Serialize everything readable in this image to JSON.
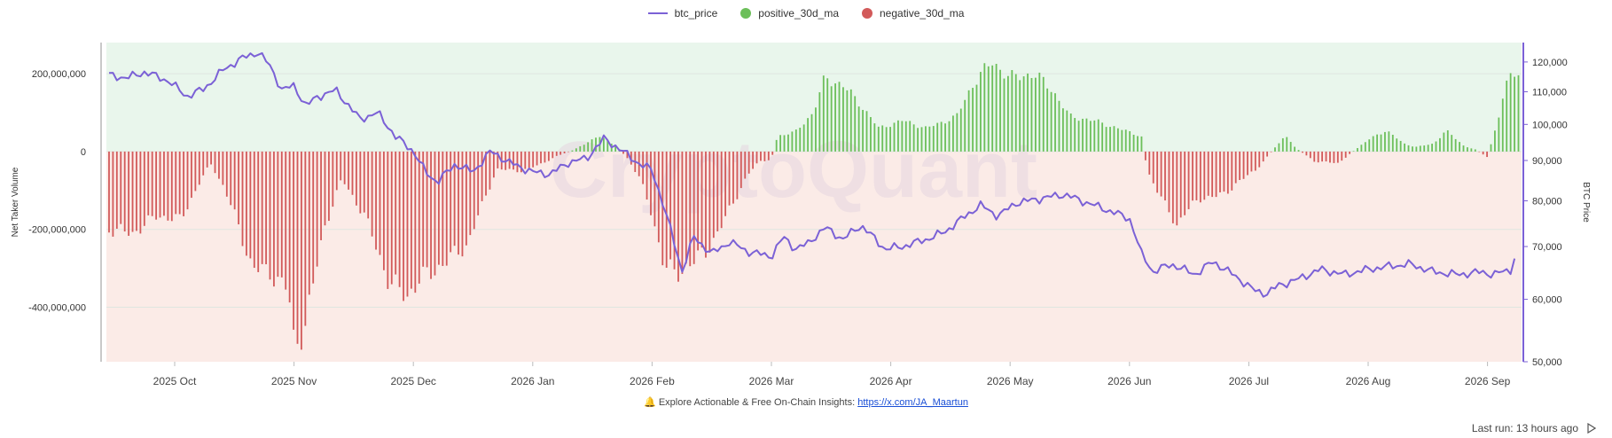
{
  "legend": {
    "items": [
      {
        "label": "btc_price",
        "color": "#7b61d6",
        "kind": "line"
      },
      {
        "label": "positive_30d_ma",
        "color": "#6cbf5a",
        "kind": "dot"
      },
      {
        "label": "negative_30d_ma",
        "color": "#d25a5a",
        "kind": "dot"
      }
    ]
  },
  "footer": {
    "note_icon": "bell-icon",
    "note_text": "Explore Actionable & Free On-Chain Insights:",
    "note_link": "https://x.com/JA_Maartun",
    "last_run": "Last run: 13 hours ago",
    "run_icon": "play-icon"
  },
  "watermark": "CryptoQuant",
  "chart_data": {
    "type": "bar",
    "x_tick_labels": [
      "2025 Oct",
      "2025 Nov",
      "2025 Dec",
      "2026 Jan",
      "2026 Feb",
      "2026 Mar",
      "2026 Apr",
      "2026 May",
      "2026 Jun",
      "2026 Jul",
      "2026 Aug",
      "2026 Sep"
    ],
    "x_range_months": [
      -0.55,
      11.35
    ],
    "y_left": {
      "label": "Net Taker Volume",
      "range": [
        -540000000,
        280000000
      ],
      "ticks": [
        200000000,
        0,
        -200000000,
        -400000000
      ],
      "tick_labels": [
        "200,000,000",
        "0",
        "-200,000,000",
        "-400,000,000"
      ]
    },
    "y_right": {
      "label": "BTC Price",
      "scale": "log",
      "range": [
        50000,
        127000
      ],
      "ticks": [
        120000,
        110000,
        100000,
        90000,
        80000,
        70000,
        60000,
        50000
      ],
      "tick_labels": [
        "120,000",
        "110,000",
        "100,000",
        "90,000",
        "80,000",
        "70,000",
        "60,000",
        "50,000"
      ]
    },
    "background_zones": [
      {
        "name": "positive",
        "color": "#e9f6ec"
      },
      {
        "name": "negative",
        "color": "#fbebe7"
      }
    ],
    "net_taker_volume_keypoints": [
      [
        -0.55,
        -200000000
      ],
      [
        -0.35,
        -210000000
      ],
      [
        -0.15,
        -165000000
      ],
      [
        0.05,
        -175000000
      ],
      [
        0.2,
        -85000000
      ],
      [
        0.3,
        -30000000
      ],
      [
        0.4,
        -85000000
      ],
      [
        0.5,
        -160000000
      ],
      [
        0.65,
        -300000000
      ],
      [
        0.8,
        -310000000
      ],
      [
        0.95,
        -355000000
      ],
      [
        1.0,
        -500000000
      ],
      [
        1.1,
        -440000000
      ],
      [
        1.25,
        -200000000
      ],
      [
        1.4,
        -70000000
      ],
      [
        1.6,
        -170000000
      ],
      [
        1.8,
        -340000000
      ],
      [
        1.95,
        -370000000
      ],
      [
        2.05,
        -330000000
      ],
      [
        2.2,
        -300000000
      ],
      [
        2.45,
        -240000000
      ],
      [
        2.6,
        -120000000
      ],
      [
        2.7,
        -45000000
      ],
      [
        2.9,
        -50000000
      ],
      [
        3.05,
        -35000000
      ],
      [
        3.2,
        -12000000
      ],
      [
        3.35,
        5000000
      ],
      [
        3.55,
        40000000
      ],
      [
        3.7,
        15000000
      ],
      [
        3.8,
        -20000000
      ],
      [
        3.9,
        -70000000
      ],
      [
        4.0,
        -165000000
      ],
      [
        4.1,
        -290000000
      ],
      [
        4.2,
        -320000000
      ],
      [
        4.3,
        -290000000
      ],
      [
        4.45,
        -260000000
      ],
      [
        4.6,
        -180000000
      ],
      [
        4.8,
        -60000000
      ],
      [
        4.9,
        -25000000
      ],
      [
        5.0,
        -20000000
      ],
      [
        5.05,
        40000000
      ],
      [
        5.2,
        50000000
      ],
      [
        5.35,
        100000000
      ],
      [
        5.45,
        190000000
      ],
      [
        5.6,
        170000000
      ],
      [
        5.75,
        120000000
      ],
      [
        5.9,
        60000000
      ],
      [
        6.1,
        80000000
      ],
      [
        6.3,
        60000000
      ],
      [
        6.55,
        90000000
      ],
      [
        6.7,
        180000000
      ],
      [
        6.85,
        230000000
      ],
      [
        7.0,
        190000000
      ],
      [
        7.2,
        200000000
      ],
      [
        7.35,
        160000000
      ],
      [
        7.5,
        90000000
      ],
      [
        7.7,
        80000000
      ],
      [
        7.95,
        55000000
      ],
      [
        8.1,
        40000000
      ],
      [
        8.15,
        -50000000
      ],
      [
        8.3,
        -140000000
      ],
      [
        8.4,
        -190000000
      ],
      [
        8.45,
        -160000000
      ],
      [
        8.6,
        -120000000
      ],
      [
        8.8,
        -110000000
      ],
      [
        8.9,
        -80000000
      ],
      [
        9.05,
        -50000000
      ],
      [
        9.15,
        -15000000
      ],
      [
        9.3,
        40000000
      ],
      [
        9.4,
        8000000
      ],
      [
        9.55,
        -25000000
      ],
      [
        9.75,
        -30000000
      ],
      [
        9.85,
        -5000000
      ],
      [
        10.0,
        30000000
      ],
      [
        10.15,
        55000000
      ],
      [
        10.3,
        20000000
      ],
      [
        10.4,
        12000000
      ],
      [
        10.55,
        20000000
      ],
      [
        10.65,
        55000000
      ],
      [
        10.8,
        15000000
      ],
      [
        10.9,
        5000000
      ],
      [
        11.0,
        -15000000
      ],
      [
        11.1,
        100000000
      ],
      [
        11.2,
        210000000
      ],
      [
        11.35,
        170000000
      ],
      [
        11.5,
        130000000
      ],
      [
        11.65,
        120000000
      ],
      [
        11.8,
        110000000
      ],
      [
        11.9,
        40000000
      ],
      [
        11.95,
        -40000000
      ],
      [
        12.0,
        -90000000
      ]
    ],
    "btc_price_keypoints": [
      [
        -0.55,
        115500
      ],
      [
        -0.4,
        114500
      ],
      [
        -0.25,
        116500
      ],
      [
        -0.05,
        113500
      ],
      [
        0.1,
        108500
      ],
      [
        0.25,
        111000
      ],
      [
        0.4,
        117000
      ],
      [
        0.55,
        121000
      ],
      [
        0.7,
        123500
      ],
      [
        0.8,
        118500
      ],
      [
        0.9,
        110500
      ],
      [
        1.0,
        112000
      ],
      [
        1.1,
        105500
      ],
      [
        1.2,
        108500
      ],
      [
        1.35,
        110500
      ],
      [
        1.45,
        106000
      ],
      [
        1.55,
        101500
      ],
      [
        1.7,
        103500
      ],
      [
        1.85,
        96500
      ],
      [
        2.0,
        92500
      ],
      [
        2.1,
        87000
      ],
      [
        2.2,
        84500
      ],
      [
        2.35,
        89000
      ],
      [
        2.5,
        87000
      ],
      [
        2.65,
        92500
      ],
      [
        2.8,
        89500
      ],
      [
        3.0,
        87000
      ],
      [
        3.15,
        86500
      ],
      [
        3.3,
        89500
      ],
      [
        3.45,
        90500
      ],
      [
        3.6,
        96000
      ],
      [
        3.75,
        92500
      ],
      [
        3.9,
        89000
      ],
      [
        4.0,
        87500
      ],
      [
        4.05,
        83000
      ],
      [
        4.15,
        74000
      ],
      [
        4.25,
        65000
      ],
      [
        4.35,
        72000
      ],
      [
        4.5,
        68500
      ],
      [
        4.65,
        71000
      ],
      [
        4.8,
        69000
      ],
      [
        5.0,
        68000
      ],
      [
        5.1,
        72000
      ],
      [
        5.2,
        69500
      ],
      [
        5.3,
        70500
      ],
      [
        5.45,
        74000
      ],
      [
        5.6,
        71500
      ],
      [
        5.75,
        74500
      ],
      [
        5.95,
        69500
      ],
      [
        6.1,
        70000
      ],
      [
        6.3,
        71500
      ],
      [
        6.45,
        73000
      ],
      [
        6.6,
        76000
      ],
      [
        6.75,
        79000
      ],
      [
        6.9,
        76500
      ],
      [
        7.05,
        79500
      ],
      [
        7.25,
        80500
      ],
      [
        7.45,
        81500
      ],
      [
        7.65,
        79500
      ],
      [
        7.85,
        77500
      ],
      [
        8.0,
        76000
      ],
      [
        8.1,
        68500
      ],
      [
        8.2,
        65000
      ],
      [
        8.35,
        66500
      ],
      [
        8.55,
        64500
      ],
      [
        8.7,
        67000
      ],
      [
        8.9,
        64000
      ],
      [
        9.05,
        61500
      ],
      [
        9.15,
        61000
      ],
      [
        9.25,
        62500
      ],
      [
        9.4,
        63500
      ],
      [
        9.6,
        65500
      ],
      [
        9.8,
        64500
      ],
      [
        10.0,
        65500
      ],
      [
        10.15,
        66000
      ],
      [
        10.35,
        66500
      ],
      [
        10.55,
        65000
      ],
      [
        10.75,
        64500
      ],
      [
        10.95,
        65000
      ],
      [
        11.05,
        64500
      ],
      [
        11.2,
        65500
      ],
      [
        11.3,
        73500
      ],
      [
        11.4,
        78000
      ],
      [
        11.55,
        78500
      ],
      [
        11.7,
        79000
      ],
      [
        11.85,
        77500
      ],
      [
        12.0,
        76000
      ]
    ]
  }
}
